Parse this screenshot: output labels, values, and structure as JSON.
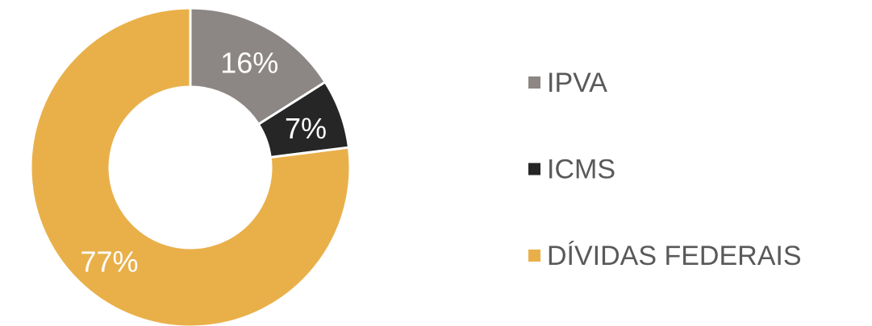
{
  "chart_data": {
    "type": "donut",
    "categories": [
      "IPVA",
      "ICMS",
      "DÍVIDAS FEDERAIS"
    ],
    "values": [
      16,
      7,
      77
    ],
    "value_labels": [
      "16%",
      "7%",
      "77%"
    ],
    "colors": [
      "#8c8784",
      "#262626",
      "#e9b04a"
    ],
    "legend": "right"
  }
}
